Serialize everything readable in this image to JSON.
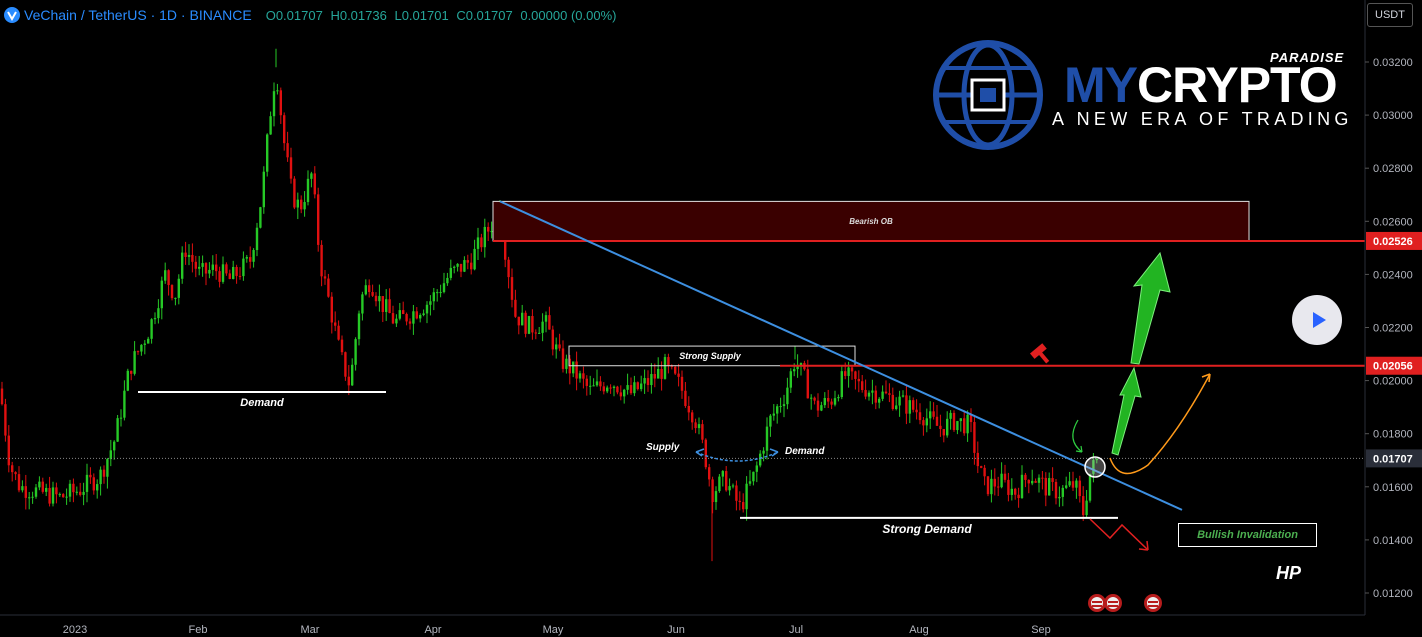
{
  "header": {
    "symbol": "VeChain / TetherUS · 1D · BINANCE",
    "open": "O0.01707",
    "high": "H0.01736",
    "low": "L0.01701",
    "close": "C0.01707",
    "change": "0.00000 (0.00%)"
  },
  "currency_button": "USDT",
  "branding": {
    "my": "MY",
    "crypto": "CRYPTO",
    "paradise": "PARADISE",
    "tagline": "A NEW ERA OF TRADING",
    "author": "HP"
  },
  "annotations": {
    "bearish_ob": "Bearish OB",
    "strong_supply": "Strong Supply",
    "supply": "Supply",
    "demand_small": "Demand",
    "demand_left": "Demand",
    "strong_demand": "Strong Demand",
    "bullish_invalidation": "Bullish Invalidation"
  },
  "colors": {
    "up": "#26c926",
    "down": "#e01010",
    "trendline": "#3d8fe0",
    "level": "#e02020",
    "ob_fill": "#3a0000",
    "accent_blue": "#2962ff"
  },
  "chart_data": {
    "type": "candlestick",
    "y_axis_labels": [
      "0.03200",
      "0.03000",
      "0.02800",
      "0.02600",
      "0.02400",
      "0.02200",
      "0.02000",
      "0.01800",
      "0.01600",
      "0.01400",
      "0.01200"
    ],
    "x_axis_labels": [
      "2023",
      "Feb",
      "Mar",
      "Apr",
      "May",
      "Jun",
      "Jul",
      "Aug",
      "Sep"
    ],
    "ylim": [
      0.0112,
      0.0334
    ],
    "price_tags": [
      {
        "value": 0.02526,
        "label": "0.02526",
        "color": "#e02020"
      },
      {
        "value": 0.02056,
        "label": "0.02056",
        "color": "#e02020"
      },
      {
        "value": 0.01707,
        "label": "0.01707",
        "color": "#2a2e39"
      }
    ],
    "close_path": [
      [
        0,
        0.0197
      ],
      [
        10,
        0.0168
      ],
      [
        20,
        0.016
      ],
      [
        40,
        0.0158
      ],
      [
        60,
        0.0156
      ],
      [
        80,
        0.0159
      ],
      [
        100,
        0.0164
      ],
      [
        115,
        0.0178
      ],
      [
        130,
        0.0205
      ],
      [
        150,
        0.022
      ],
      [
        165,
        0.024
      ],
      [
        175,
        0.0232
      ],
      [
        185,
        0.025
      ],
      [
        200,
        0.024
      ],
      [
        215,
        0.0242
      ],
      [
        230,
        0.0238
      ],
      [
        250,
        0.0245
      ],
      [
        262,
        0.027
      ],
      [
        270,
        0.03
      ],
      [
        276,
        0.0318
      ],
      [
        284,
        0.029
      ],
      [
        292,
        0.027
      ],
      [
        300,
        0.0265
      ],
      [
        312,
        0.0278
      ],
      [
        320,
        0.0245
      ],
      [
        330,
        0.0228
      ],
      [
        340,
        0.021
      ],
      [
        350,
        0.0198
      ],
      [
        360,
        0.023
      ],
      [
        370,
        0.0238
      ],
      [
        380,
        0.023
      ],
      [
        395,
        0.0222
      ],
      [
        410,
        0.0225
      ],
      [
        430,
        0.023
      ],
      [
        450,
        0.024
      ],
      [
        470,
        0.0245
      ],
      [
        490,
        0.0258
      ],
      [
        500,
        0.0264
      ],
      [
        505,
        0.025
      ],
      [
        515,
        0.0225
      ],
      [
        530,
        0.022
      ],
      [
        545,
        0.0222
      ],
      [
        560,
        0.0208
      ],
      [
        575,
        0.0203
      ],
      [
        590,
        0.0196
      ],
      [
        610,
        0.02
      ],
      [
        630,
        0.0195
      ],
      [
        650,
        0.02
      ],
      [
        665,
        0.0205
      ],
      [
        680,
        0.0198
      ],
      [
        695,
        0.0186
      ],
      [
        705,
        0.0172
      ],
      [
        712,
        0.0158
      ],
      [
        725,
        0.0163
      ],
      [
        740,
        0.0152
      ],
      [
        755,
        0.0165
      ],
      [
        770,
        0.0185
      ],
      [
        785,
        0.0195
      ],
      [
        795,
        0.0208
      ],
      [
        805,
        0.02
      ],
      [
        815,
        0.019
      ],
      [
        830,
        0.0192
      ],
      [
        845,
        0.0202
      ],
      [
        860,
        0.0198
      ],
      [
        880,
        0.0195
      ],
      [
        900,
        0.0192
      ],
      [
        920,
        0.0188
      ],
      [
        940,
        0.0182
      ],
      [
        955,
        0.0185
      ],
      [
        970,
        0.0183
      ],
      [
        978,
        0.0168
      ],
      [
        985,
        0.016
      ],
      [
        1000,
        0.0162
      ],
      [
        1015,
        0.0158
      ],
      [
        1030,
        0.0165
      ],
      [
        1045,
        0.016
      ],
      [
        1060,
        0.0158
      ],
      [
        1075,
        0.0161
      ],
      [
        1083,
        0.015
      ],
      [
        1090,
        0.0165
      ],
      [
        1097,
        0.017
      ]
    ],
    "wick_extremes": [
      {
        "x": 712,
        "low": 0.0132
      },
      {
        "x": 276,
        "high": 0.0325
      },
      {
        "x": 500,
        "high": 0.0268
      },
      {
        "x": 795,
        "high": 0.0213
      }
    ],
    "zones": [
      {
        "label": "Bearish OB",
        "x_from": 493,
        "x_to": 1249,
        "top": 0.02675,
        "bottom": 0.02526
      },
      {
        "label": "Strong Supply",
        "x_from": 569,
        "x_to": 855,
        "top": 0.0213,
        "bottom": 0.02056
      }
    ],
    "levels": [
      {
        "value": 0.02526,
        "x_from": 493
      },
      {
        "value": 0.02056,
        "x_from": 780
      },
      {
        "value": 0.01957,
        "x_from": 138,
        "x_to": 386,
        "label": "Demand"
      },
      {
        "value": 0.01483,
        "x_from": 740,
        "x_to": 1118,
        "label": "Strong Demand"
      }
    ],
    "trendline": {
      "from": [
        500,
        0.02675
      ],
      "to": [
        1182,
        0.01513
      ]
    }
  }
}
